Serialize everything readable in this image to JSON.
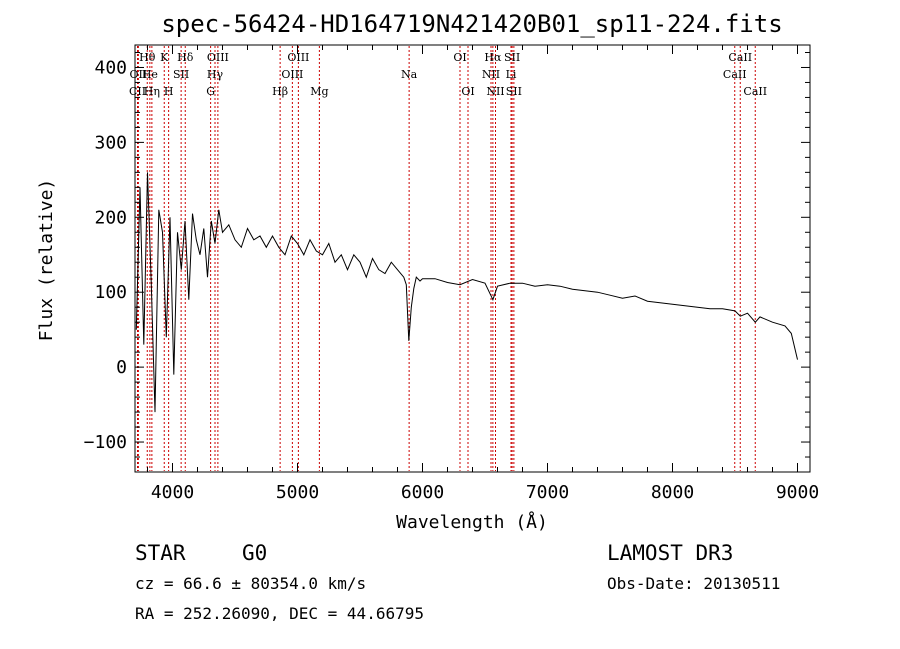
{
  "chart_data": {
    "type": "line",
    "title": "spec-56424-HD164719N421420B01_sp11-224.fits",
    "xlabel": "Wavelength (Å)",
    "ylabel": "Flux (relative)",
    "xlim": [
      3700,
      9100
    ],
    "ylim": [
      -140,
      430
    ],
    "xticks": [
      4000,
      5000,
      6000,
      7000,
      8000,
      9000
    ],
    "xtick_labels": [
      "4000",
      "5000",
      "6000",
      "7000",
      "8000",
      "9000"
    ],
    "yticks": [
      -100,
      0,
      100,
      200,
      300,
      400
    ],
    "ytick_labels": [
      "−100",
      "0",
      "100",
      "200",
      "300",
      "400"
    ],
    "series": [
      {
        "name": "spectrum",
        "x": [
          3710,
          3740,
          3770,
          3800,
          3830,
          3860,
          3890,
          3920,
          3950,
          3980,
          4010,
          4040,
          4070,
          4100,
          4130,
          4160,
          4190,
          4220,
          4250,
          4280,
          4310,
          4340,
          4370,
          4400,
          4450,
          4500,
          4550,
          4600,
          4650,
          4700,
          4750,
          4800,
          4850,
          4900,
          4950,
          5000,
          5050,
          5100,
          5150,
          5200,
          5250,
          5300,
          5350,
          5400,
          5450,
          5500,
          5550,
          5600,
          5650,
          5700,
          5750,
          5800,
          5850,
          5870,
          5890,
          5910,
          5930,
          5950,
          5980,
          6000,
          6100,
          6200,
          6300,
          6400,
          6500,
          6563,
          6600,
          6700,
          6800,
          6900,
          7000,
          7100,
          7200,
          7300,
          7400,
          7500,
          7600,
          7700,
          7800,
          7900,
          8000,
          8100,
          8200,
          8300,
          8400,
          8500,
          8542,
          8600,
          8662,
          8700,
          8800,
          8900,
          8950,
          9000
        ],
        "values": [
          50,
          240,
          30,
          260,
          110,
          -60,
          210,
          180,
          40,
          200,
          -10,
          180,
          130,
          195,
          90,
          205,
          170,
          150,
          185,
          120,
          195,
          165,
          210,
          180,
          190,
          170,
          160,
          185,
          170,
          175,
          160,
          175,
          160,
          150,
          175,
          165,
          150,
          170,
          155,
          150,
          165,
          140,
          150,
          130,
          150,
          140,
          120,
          145,
          130,
          125,
          140,
          130,
          120,
          110,
          35,
          80,
          105,
          120,
          115,
          118,
          118,
          113,
          110,
          117,
          112,
          90,
          108,
          112,
          112,
          108,
          110,
          108,
          104,
          102,
          100,
          96,
          92,
          95,
          88,
          86,
          84,
          82,
          80,
          78,
          78,
          75,
          68,
          72,
          60,
          67,
          60,
          55,
          45,
          10
        ]
      }
    ],
    "line_labels": [
      {
        "label": "Hθ",
        "x": 3798,
        "row": 0
      },
      {
        "label": "OII",
        "x": 3727,
        "row": 1
      },
      {
        "label": "CII",
        "x": 3720,
        "row": 2
      },
      {
        "label": "He",
        "x": 3819,
        "row": 1
      },
      {
        "label": "Hη",
        "x": 3835,
        "row": 2
      },
      {
        "label": "K",
        "x": 3934,
        "row": 0
      },
      {
        "label": "H",
        "x": 3969,
        "row": 2
      },
      {
        "label": "SII",
        "x": 4069,
        "row": 1
      },
      {
        "label": "Hδ",
        "x": 4102,
        "row": 0
      },
      {
        "label": "OIII",
        "x": 4363,
        "row": 0
      },
      {
        "label": "Hγ",
        "x": 4340,
        "row": 1
      },
      {
        "label": "G",
        "x": 4305,
        "row": 2
      },
      {
        "label": "Hβ",
        "x": 4861,
        "row": 2
      },
      {
        "label": "OIII",
        "x": 5007,
        "row": 0
      },
      {
        "label": "OIII",
        "x": 4959,
        "row": 1
      },
      {
        "label": "Mg",
        "x": 5175,
        "row": 2
      },
      {
        "label": "Na",
        "x": 5893,
        "row": 1
      },
      {
        "label": "OI",
        "x": 6300,
        "row": 0
      },
      {
        "label": "OI",
        "x": 6364,
        "row": 2
      },
      {
        "label": "Hα",
        "x": 6563,
        "row": 0
      },
      {
        "label": "NII",
        "x": 6548,
        "row": 1
      },
      {
        "label": "NII",
        "x": 6584,
        "row": 2
      },
      {
        "label": "SII",
        "x": 6717,
        "row": 0
      },
      {
        "label": "Li",
        "x": 6708,
        "row": 1
      },
      {
        "label": "SII",
        "x": 6731,
        "row": 2
      },
      {
        "label": "CaII",
        "x": 8542,
        "row": 0
      },
      {
        "label": "CaII",
        "x": 8498,
        "row": 1
      },
      {
        "label": "CaII",
        "x": 8662,
        "row": 2
      }
    ]
  },
  "info": {
    "object_class": "STAR",
    "subclass": "G0",
    "survey": "LAMOST DR3",
    "cz": "cz = 66.6 ± 80354.0 km/s",
    "obs_date": "Obs-Date: 20130511",
    "radec": "RA = 252.26090, DEC =  44.66795"
  },
  "colors": {
    "axis": "#000000",
    "spectrum": "#000000",
    "line_markers": "#cc0000",
    "background": "#ffffff"
  }
}
